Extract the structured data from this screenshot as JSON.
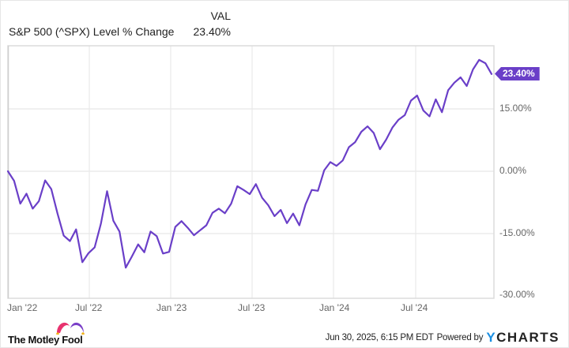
{
  "legend": {
    "column_header": "VAL",
    "series_name": "S&P 500 (^SPX) Level % Change",
    "series_value": "23.40%"
  },
  "current_tag": "23.40%",
  "y_axis": {
    "ticks": [
      "15.00%",
      "0.00%",
      "-15.00%",
      "-30.00%"
    ]
  },
  "x_axis": {
    "ticks": [
      "Jan '22",
      "Jul '22",
      "Jan '23",
      "Jul '23",
      "Jan '24",
      "Jul '24"
    ]
  },
  "footer": {
    "brand": "The Motley Fool",
    "timestamp": "Jun 30, 2025, 6:15 PM EDT",
    "powered_by": "Powered by",
    "provider_y": "Y",
    "provider_rest": "CHARTS"
  },
  "colors": {
    "line": "#6a3fc8",
    "grid": "#e8e8e8",
    "axis_text": "#666666",
    "ycharts_blue": "#1a8fe3"
  },
  "chart_data": {
    "type": "line",
    "title": "S&P 500 (^SPX) Level % Change",
    "xlabel": "",
    "ylabel": "",
    "ylim": [
      -30,
      30
    ],
    "grid": true,
    "legend_position": "top-left",
    "x_ticks": [
      "Jan '22",
      "Jul '22",
      "Jan '23",
      "Jul '23",
      "Jan '24",
      "Jul '24"
    ],
    "y_ticks": [
      15,
      0,
      -15,
      -30
    ],
    "series": [
      {
        "name": "S&P 500 (^SPX) Level % Change",
        "color": "#6a3fc8",
        "final_value": 23.4,
        "x": [
          "2022-01-03",
          "2022-01-14",
          "2022-01-28",
          "2022-02-11",
          "2022-02-25",
          "2022-03-11",
          "2022-03-25",
          "2022-04-08",
          "2022-04-22",
          "2022-05-06",
          "2022-05-20",
          "2022-06-03",
          "2022-06-17",
          "2022-07-01",
          "2022-07-15",
          "2022-07-29",
          "2022-08-12",
          "2022-08-26",
          "2022-09-09",
          "2022-09-23",
          "2022-10-07",
          "2022-10-21",
          "2022-11-04",
          "2022-11-18",
          "2022-12-02",
          "2022-12-16",
          "2022-12-30",
          "2023-01-13",
          "2023-01-27",
          "2023-02-10",
          "2023-02-24",
          "2023-03-10",
          "2023-03-24",
          "2023-04-06",
          "2023-04-21",
          "2023-05-05",
          "2023-05-19",
          "2023-06-02",
          "2023-06-16",
          "2023-06-30",
          "2023-07-14",
          "2023-07-28",
          "2023-08-11",
          "2023-08-25",
          "2023-09-08",
          "2023-09-22",
          "2023-10-06",
          "2023-10-20",
          "2023-11-03",
          "2023-11-17",
          "2023-12-01",
          "2023-12-15",
          "2023-12-29",
          "2024-01-12",
          "2024-01-26",
          "2024-02-09",
          "2024-02-23",
          "2024-03-08",
          "2024-03-22",
          "2024-04-05",
          "2024-04-19",
          "2024-05-03",
          "2024-05-17",
          "2024-05-31",
          "2024-06-14",
          "2024-06-28",
          "2024-07-12",
          "2024-07-26",
          "2024-08-09",
          "2024-08-23",
          "2024-09-06",
          "2024-09-20",
          "2024-10-04",
          "2024-10-18",
          "2024-11-01",
          "2024-11-15",
          "2024-11-29",
          "2024-12-13",
          "2024-12-27"
        ],
        "values": [
          0.0,
          -2.3,
          -7.8,
          -5.4,
          -9.0,
          -7.2,
          -2.2,
          -4.3,
          -10.2,
          -15.5,
          -16.8,
          -14.0,
          -21.9,
          -19.7,
          -18.3,
          -12.6,
          -4.8,
          -11.9,
          -14.5,
          -23.2,
          -20.5,
          -17.6,
          -19.5,
          -14.5,
          -15.6,
          -19.8,
          -19.4,
          -13.4,
          -12.0,
          -13.6,
          -15.4,
          -14.2,
          -13.0,
          -10.0,
          -9.0,
          -10.1,
          -7.8,
          -3.6,
          -4.5,
          -5.5,
          -3.1,
          -6.4,
          -8.2,
          -10.8,
          -9.3,
          -12.5,
          -10.2,
          -13.0,
          -8.0,
          -4.5,
          -4.7,
          0.2,
          2.2,
          1.3,
          2.6,
          5.8,
          7.0,
          9.5,
          10.8,
          9.2,
          5.3,
          7.6,
          10.5,
          12.4,
          13.5,
          17.0,
          18.2,
          14.6,
          13.2,
          17.3,
          14.2,
          19.5,
          21.3,
          22.6,
          20.5,
          24.5,
          26.8,
          26.0,
          23.4
        ]
      }
    ]
  }
}
